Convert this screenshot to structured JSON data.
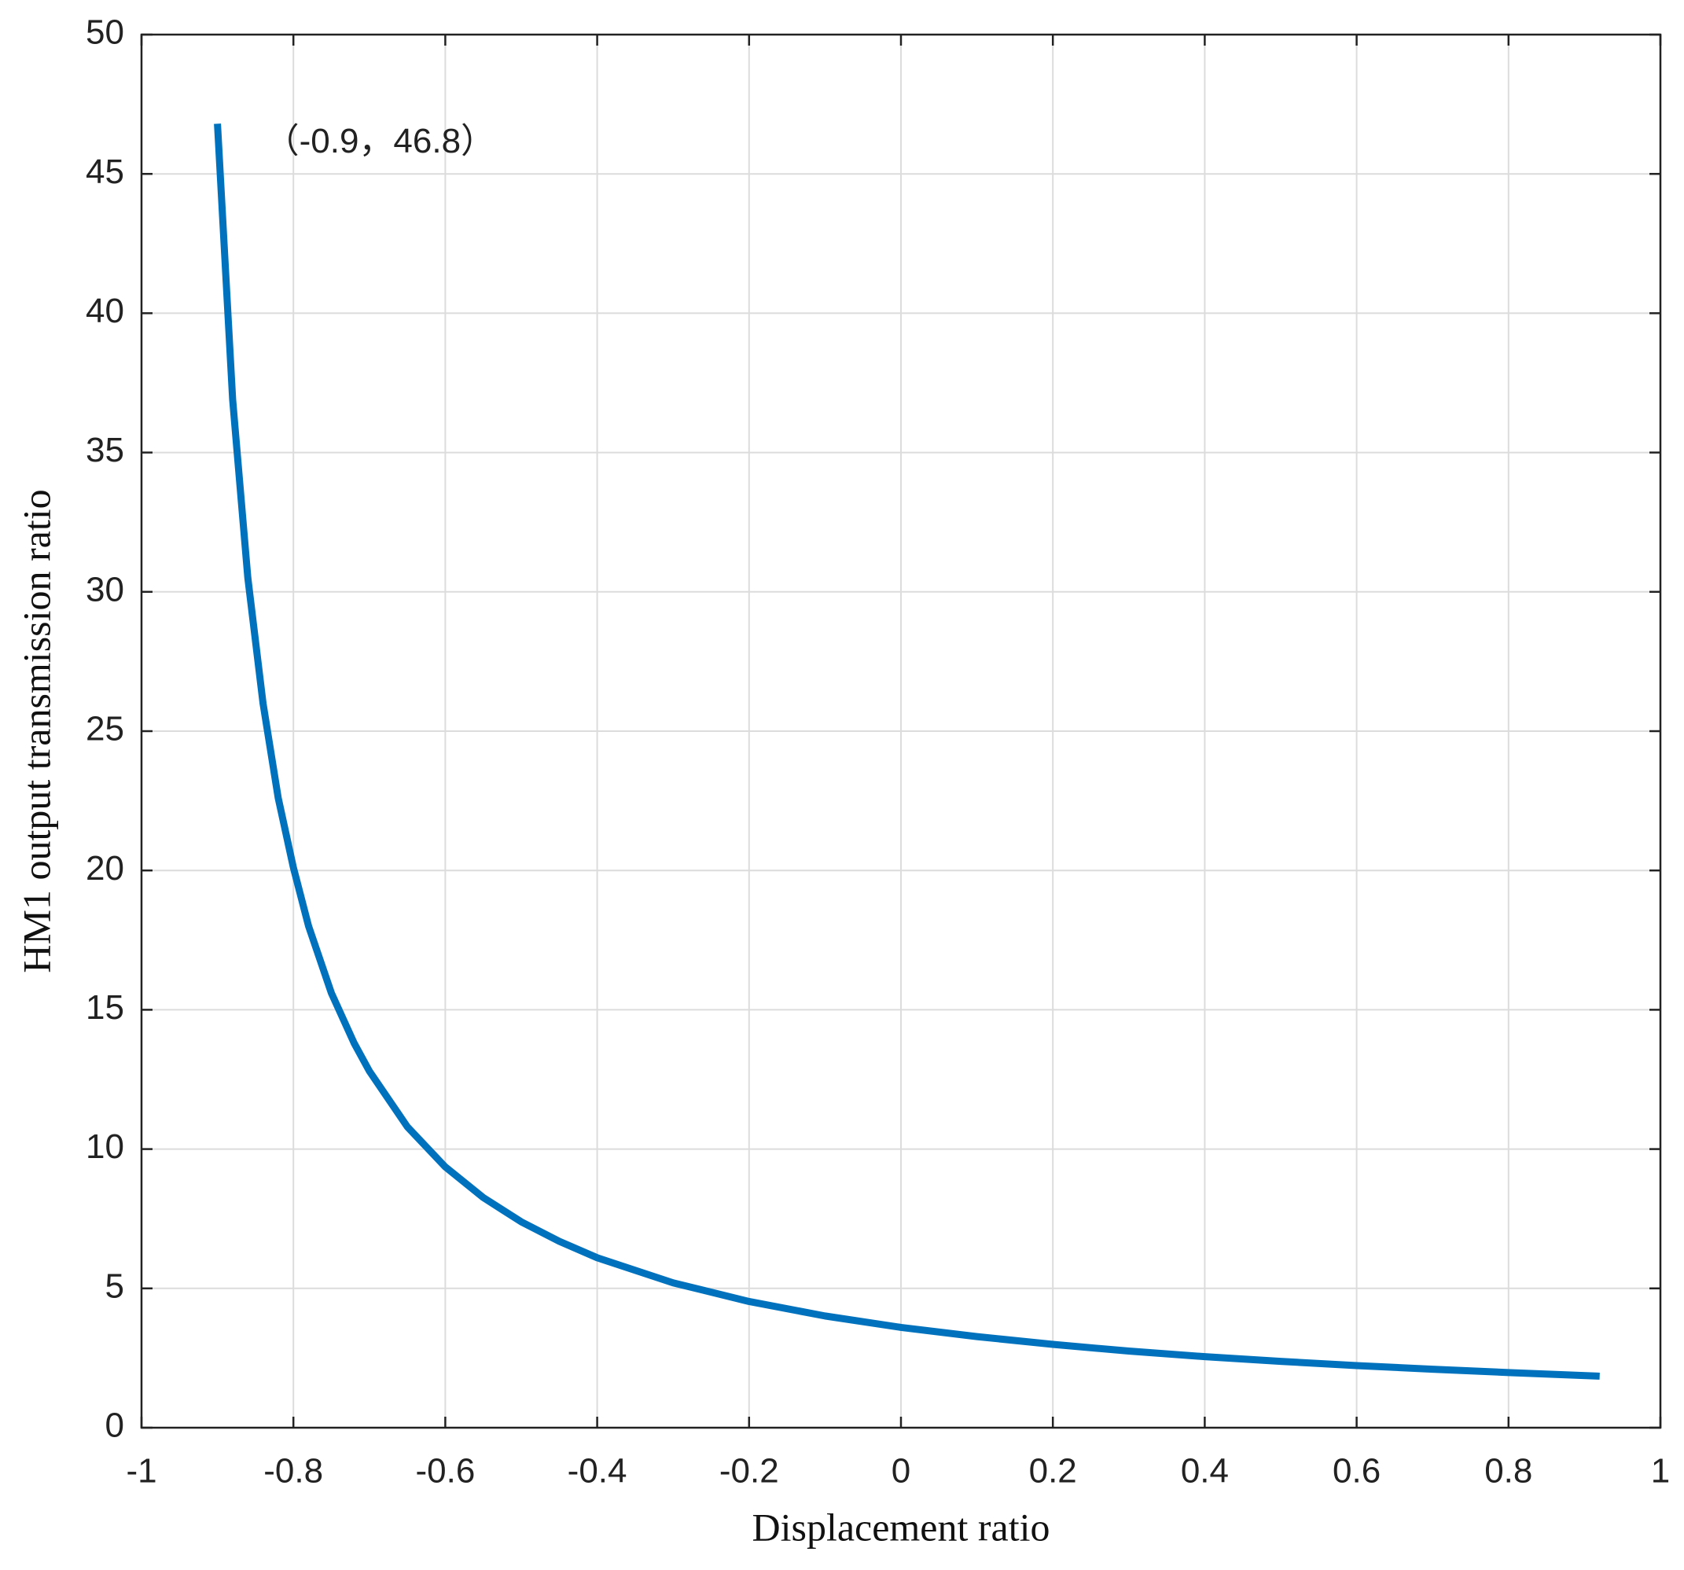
{
  "chart_data": {
    "type": "line",
    "xlabel": "Displacement ratio",
    "ylabel": "HM1 output transmission ratio",
    "annotation": "（-0.9，46.8）",
    "x": [
      -0.9,
      -0.88,
      -0.86,
      -0.84,
      -0.82,
      -0.8,
      -0.78,
      -0.75,
      -0.72,
      -0.7,
      -0.65,
      -0.6,
      -0.55,
      -0.5,
      -0.45,
      -0.4,
      -0.3,
      -0.2,
      -0.1,
      0,
      0.1,
      0.2,
      0.3,
      0.4,
      0.5,
      0.6,
      0.7,
      0.8,
      0.92
    ],
    "series": [
      {
        "color": "#0072bd",
        "values": [
          46.8,
          36.9,
          30.5,
          26.0,
          22.6,
          20.1,
          18.0,
          15.6,
          13.8,
          12.8,
          10.8,
          9.36,
          8.26,
          7.39,
          6.69,
          6.1,
          5.2,
          4.53,
          4.01,
          3.6,
          3.27,
          2.99,
          2.75,
          2.55,
          2.38,
          2.23,
          2.1,
          1.98,
          1.85
        ]
      }
    ],
    "xlim": [
      -1,
      1
    ],
    "ylim": [
      0,
      50
    ],
    "xticks": [
      -1,
      -0.8,
      -0.6,
      -0.4,
      -0.2,
      0,
      0.2,
      0.4,
      0.6,
      0.8,
      1
    ],
    "yticks": [
      0,
      5,
      10,
      15,
      20,
      25,
      30,
      35,
      40,
      45,
      50
    ],
    "grid": true
  }
}
